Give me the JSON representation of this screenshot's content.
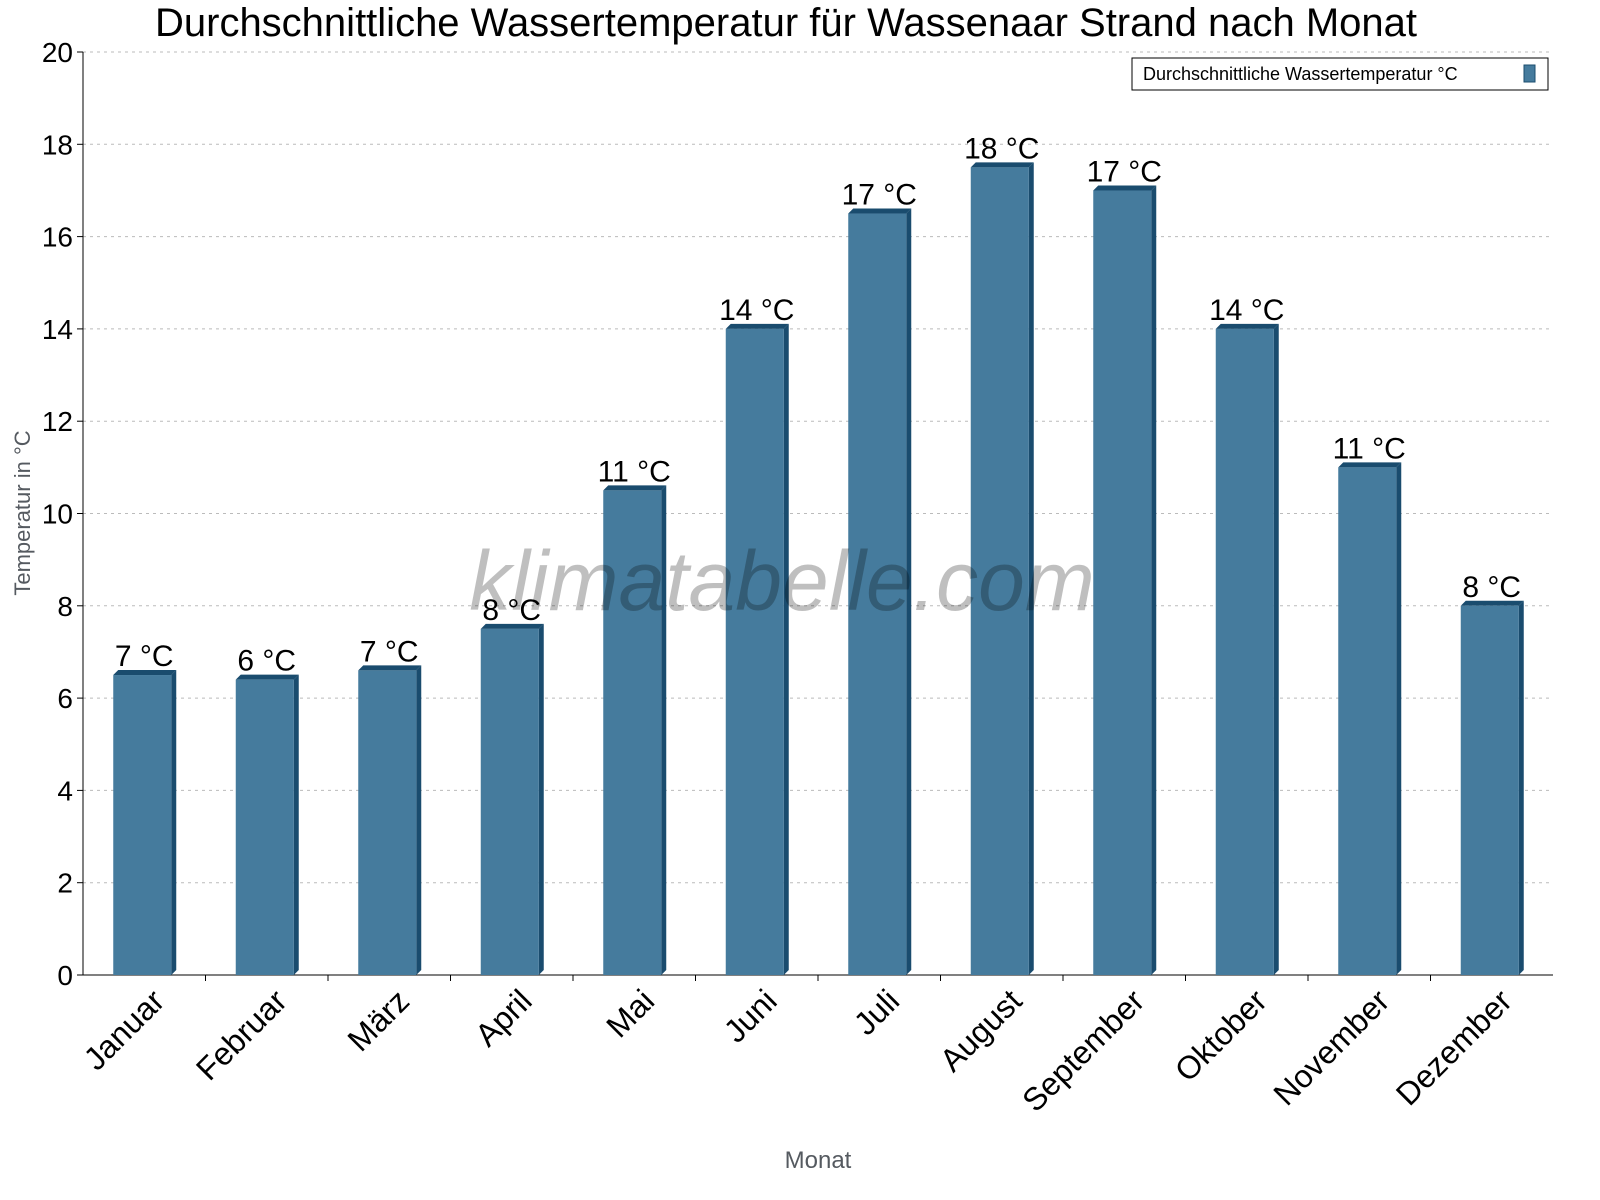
{
  "chart_data": {
    "type": "bar",
    "title": "Durchschnittliche Wassertemperatur für Wassenaar Strand nach Monat",
    "xlabel": "Monat",
    "ylabel": "Temperatur in °C",
    "ylim": [
      0,
      20
    ],
    "yticks": [
      0,
      2,
      4,
      6,
      8,
      10,
      12,
      14,
      16,
      18,
      20
    ],
    "grid": true,
    "legend_placement": "top-right",
    "categories": [
      "Januar",
      "Februar",
      "März",
      "April",
      "Mai",
      "Juni",
      "Juli",
      "August",
      "September",
      "Oktober",
      "November",
      "Dezember"
    ],
    "series": [
      {
        "name": "Durchschnittliche Wassertemperatur °C",
        "values": [
          6.5,
          6.4,
          6.6,
          7.5,
          10.5,
          14,
          16.5,
          17.5,
          17,
          14,
          11,
          8
        ],
        "data_labels": [
          "7 °C",
          "6 °C",
          "7 °C",
          "8 °C",
          "11 °C",
          "14 °C",
          "17 °C",
          "18 °C",
          "17 °C",
          "14 °C",
          "11 °C",
          "8 °C"
        ]
      }
    ],
    "colors": {
      "bar": "#457b9d",
      "bar_side": "#1a4c6e"
    },
    "watermark": "klimatabelle.com"
  }
}
